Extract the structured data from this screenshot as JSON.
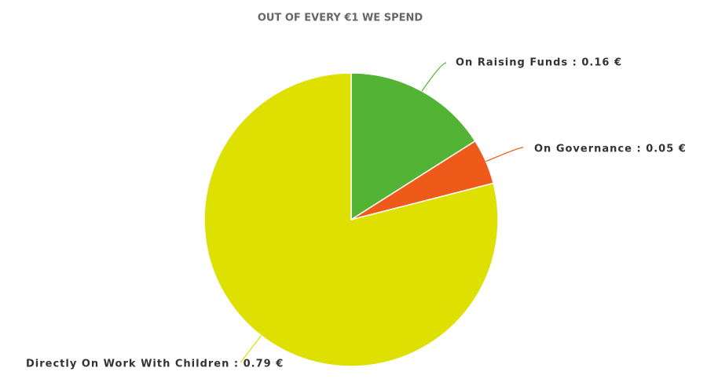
{
  "chart_data": {
    "type": "pie",
    "title": "OUT OF EVERY €1 WE SPEND",
    "values": [
      0.16,
      0.05,
      0.79
    ],
    "value_labels": [
      "On Raising Funds : 0.16 €",
      "On Governance : 0.05 €",
      "Directly On Work With Children : 0.79 €"
    ],
    "colors": [
      "#52b335",
      "#ee5a1a",
      "#dde000"
    ]
  }
}
